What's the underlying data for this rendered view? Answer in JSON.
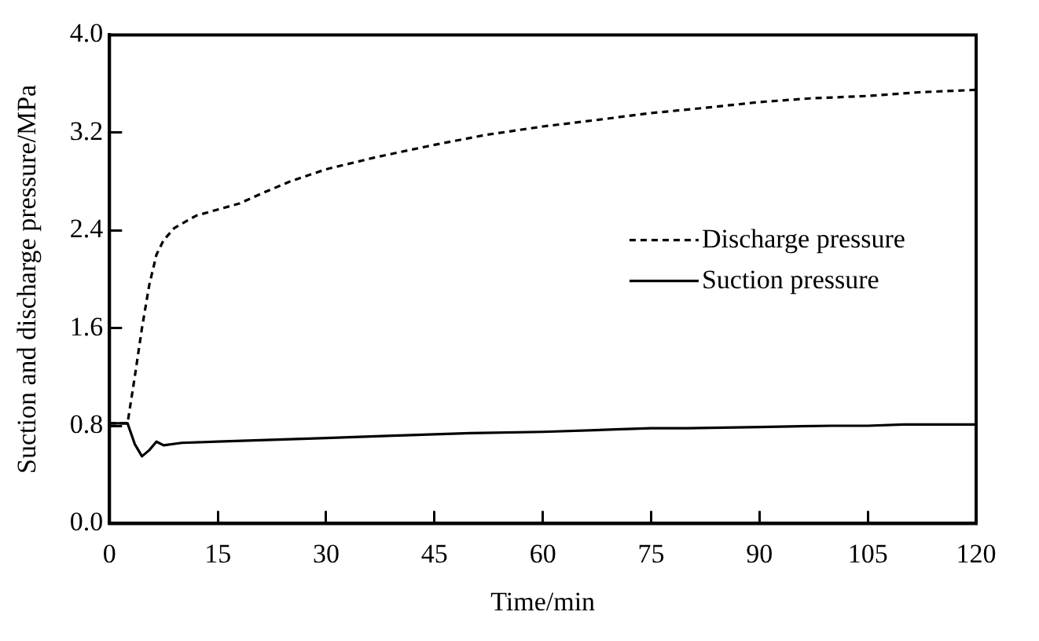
{
  "chart_data": {
    "type": "line",
    "xlabel": "Time/min",
    "ylabel": "Suction and discharge pressure/MPa",
    "xlim": [
      0,
      120
    ],
    "xticks": [
      0,
      15,
      30,
      45,
      60,
      75,
      90,
      105,
      120
    ],
    "ylim": [
      0,
      4.0
    ],
    "yticks": [
      {
        "value": 0,
        "label": "0.0"
      },
      {
        "value": 0.8,
        "label": "0.8"
      },
      {
        "value": 1.6,
        "label": "1.6"
      },
      {
        "value": 2.4,
        "label": "2.4"
      },
      {
        "value": 3.2,
        "label": "3.2"
      },
      {
        "value": 4.0,
        "label": "4.0"
      }
    ],
    "grid": false,
    "legend": "right",
    "marker": "none",
    "series": [
      {
        "name": "Discharge pressure",
        "color": "#000000",
        "line_style": "dashed",
        "x": [
          0,
          2.5,
          3.5,
          4.5,
          5.5,
          6.5,
          7.5,
          9,
          12,
          15,
          18,
          21,
          25,
          30,
          37,
          45,
          52,
          60,
          67,
          75,
          82,
          90,
          97,
          105,
          112,
          120
        ],
        "values": [
          0.82,
          0.82,
          1.2,
          1.6,
          1.95,
          2.2,
          2.32,
          2.42,
          2.52,
          2.57,
          2.62,
          2.7,
          2.8,
          2.9,
          3.0,
          3.1,
          3.18,
          3.25,
          3.3,
          3.36,
          3.4,
          3.45,
          3.48,
          3.5,
          3.53,
          3.55
        ]
      },
      {
        "name": "Suction pressure",
        "color": "#000000",
        "line_style": "solid",
        "x": [
          0,
          2.5,
          3.5,
          4.5,
          5.5,
          6.5,
          7.5,
          10,
          15,
          20,
          25,
          30,
          40,
          45,
          50,
          60,
          70,
          75,
          80,
          90,
          100,
          105,
          110,
          120
        ],
        "values": [
          0.82,
          0.82,
          0.65,
          0.55,
          0.6,
          0.67,
          0.64,
          0.66,
          0.67,
          0.68,
          0.69,
          0.7,
          0.72,
          0.73,
          0.74,
          0.75,
          0.77,
          0.78,
          0.78,
          0.79,
          0.8,
          0.8,
          0.81,
          0.81
        ]
      }
    ]
  }
}
